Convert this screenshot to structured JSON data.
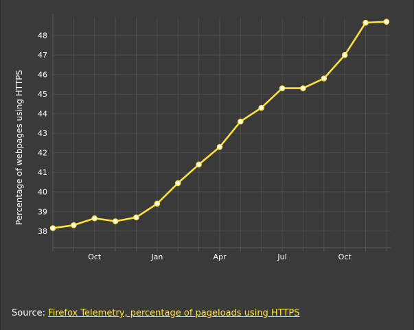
{
  "chart_data": {
    "type": "line",
    "title": "",
    "xlabel": "",
    "ylabel": "Percentage of webpages using HTTPS",
    "x_tick_labels": [
      {
        "label": "Oct",
        "x": 2
      },
      {
        "label": "Jan",
        "x": 5
      },
      {
        "label": "Apr",
        "x": 8
      },
      {
        "label": "Jul",
        "x": 11
      },
      {
        "label": "Oct",
        "x": 14
      }
    ],
    "yticks": [
      38,
      39,
      40,
      41,
      42,
      43,
      44,
      45,
      46,
      47,
      48
    ],
    "ylim": [
      37.15,
      48.9
    ],
    "xlim": [
      0,
      16.2
    ],
    "grid": true,
    "series": [
      {
        "x": [
          0,
          1,
          2,
          3,
          4,
          5,
          6,
          7,
          8,
          9,
          10,
          11,
          12,
          13,
          14,
          15,
          16
        ],
        "values": [
          38.15,
          38.3,
          38.65,
          38.5,
          38.7,
          39.4,
          40.45,
          41.4,
          42.3,
          43.6,
          44.3,
          45.3,
          45.3,
          45.8,
          47.0,
          48.65,
          48.7
        ]
      }
    ],
    "colors": {
      "line": "#ffe23b",
      "marker_fill": "#ffffff",
      "grid": "#4d4d4d",
      "axis": "#5a5a5a",
      "background": "#3a3a3a"
    }
  },
  "source": {
    "prefix": "Source: ",
    "link_text": "Firefox Telemetry, percentage of pageloads using HTTPS"
  }
}
